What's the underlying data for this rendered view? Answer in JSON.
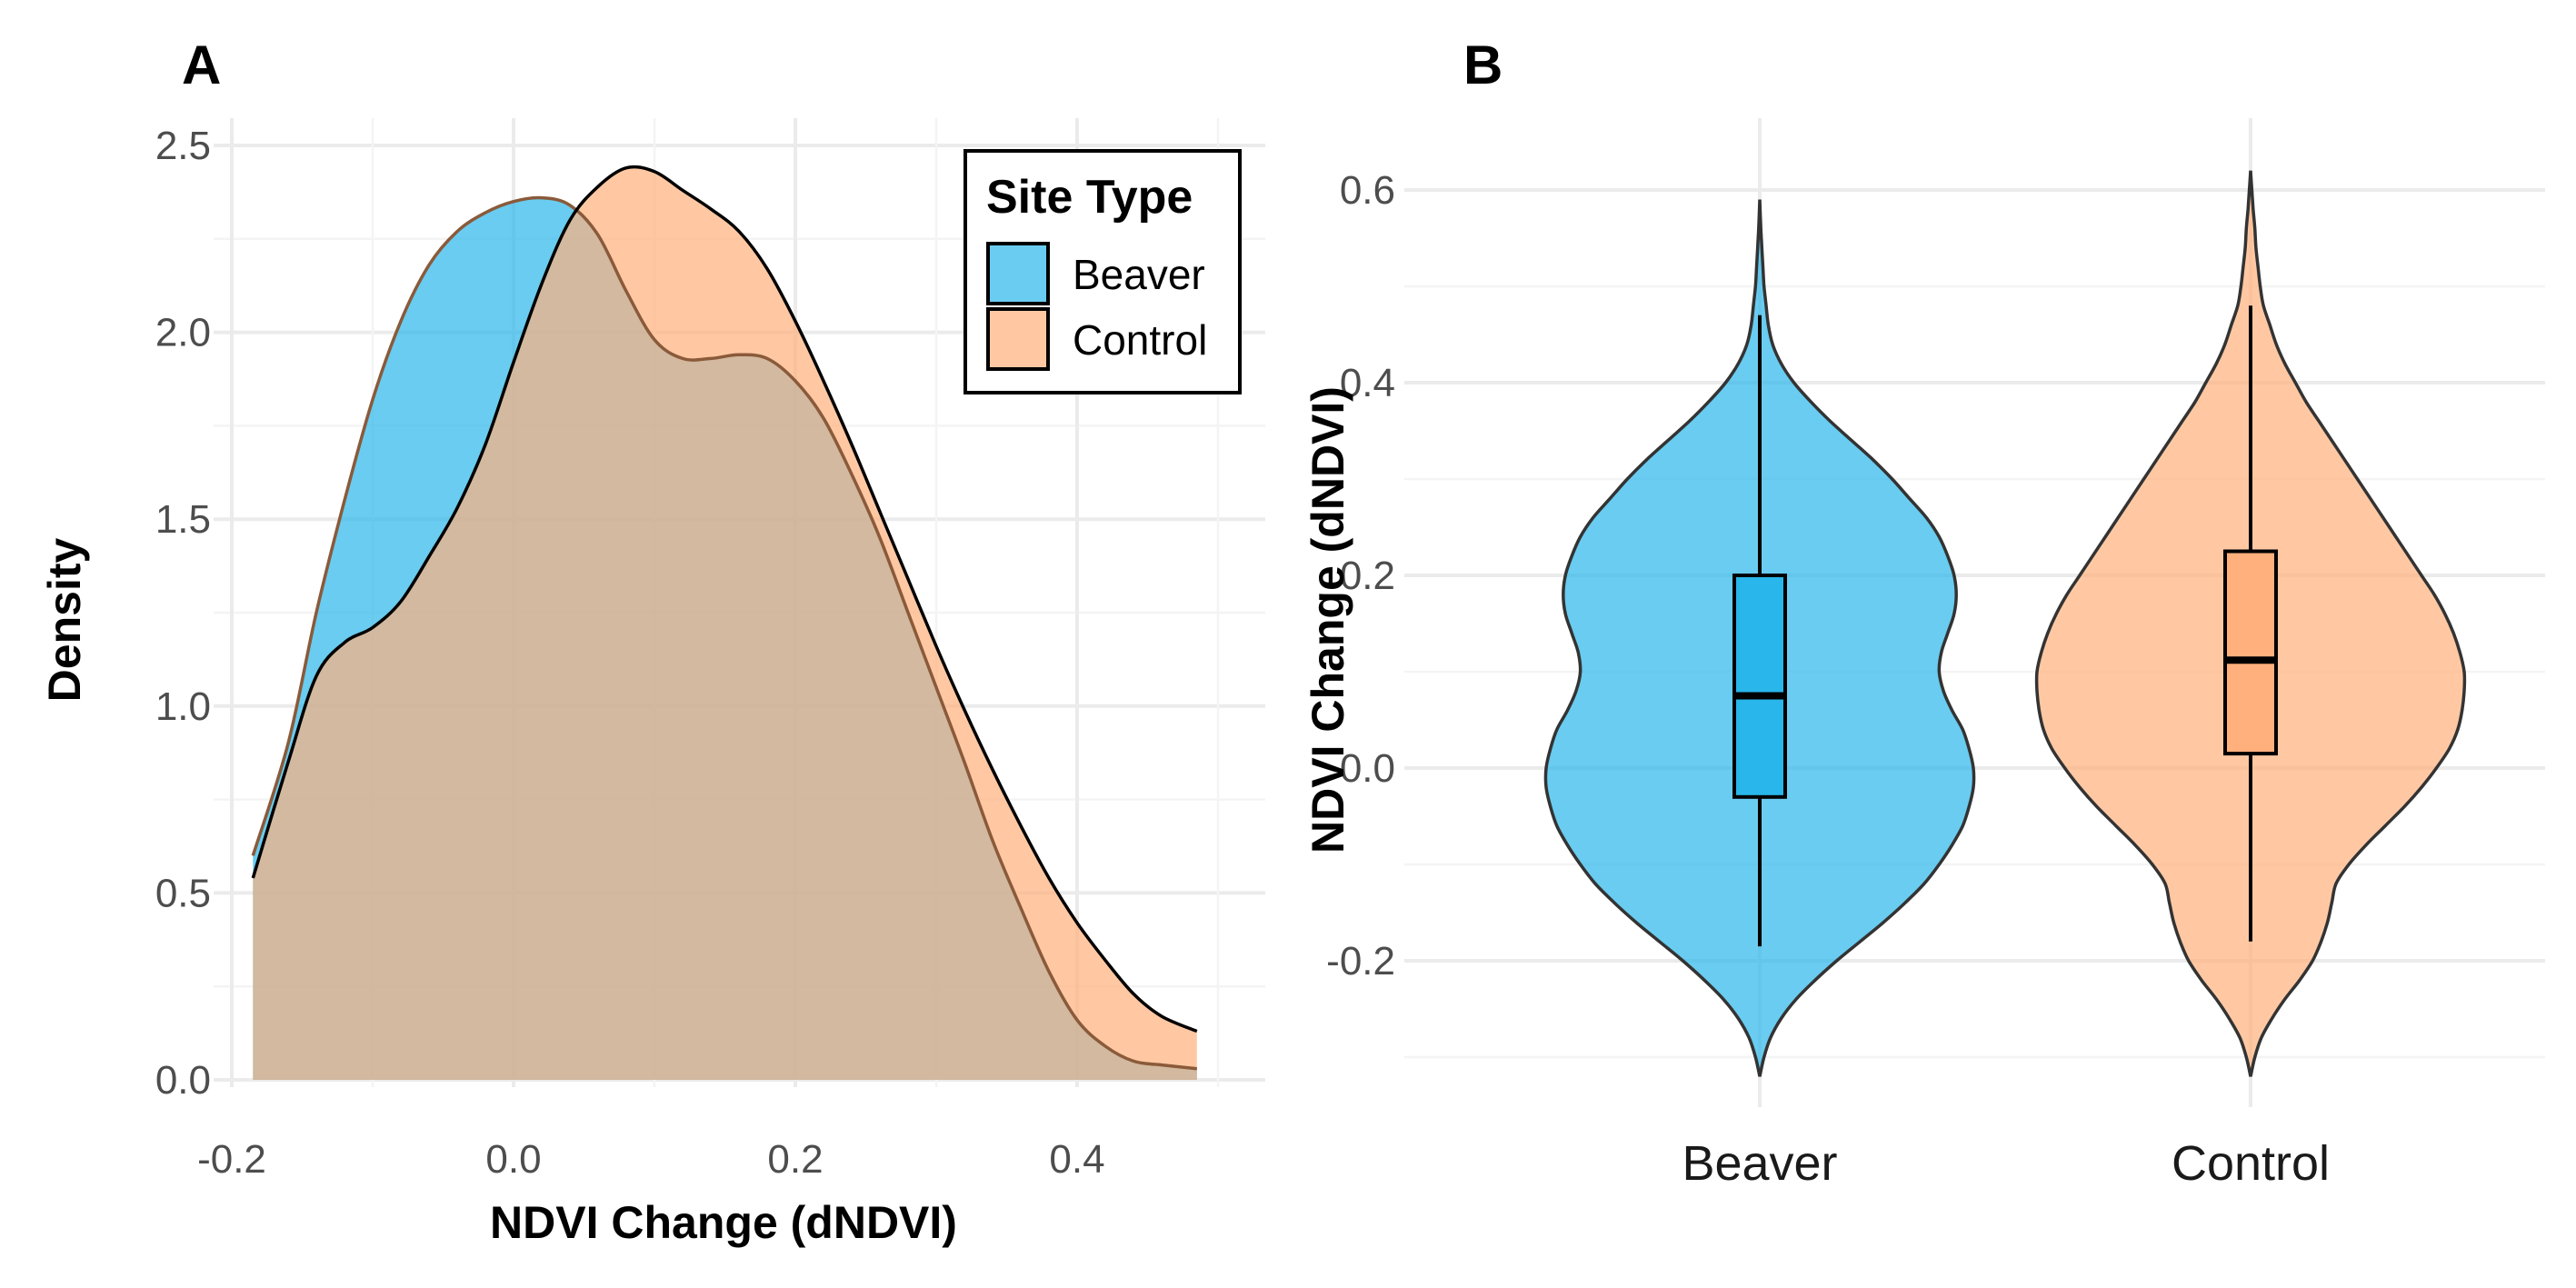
{
  "colors": {
    "beaver": "#29b6ea",
    "control": "#ffb07c",
    "grid_major": "#ebebeb",
    "grid_minor": "#f4f4f4",
    "text": "#000000",
    "tick_text": "#4d4d4d"
  },
  "chart_data": [
    {
      "type": "area",
      "panel_label": "A",
      "xlabel": "NDVI Change (dNDVI)",
      "ylabel": "Density",
      "xlim": [
        -0.2,
        0.5
      ],
      "ylim": [
        0,
        2.5
      ],
      "x_ticks": [
        -0.2,
        0.0,
        0.2,
        0.4
      ],
      "x_tick_labels": [
        "-0.2",
        "0.0",
        "0.2",
        "0.4"
      ],
      "y_ticks": [
        0.0,
        0.5,
        1.0,
        1.5,
        2.0,
        2.5
      ],
      "y_tick_labels": [
        "0.0",
        "0.5",
        "1.0",
        "1.5",
        "2.0",
        "2.5"
      ],
      "grid": true,
      "legend": {
        "title": "Site Type",
        "position": "top-right",
        "entries": [
          "Beaver",
          "Control"
        ]
      },
      "series": [
        {
          "name": "Beaver",
          "x": [
            -0.185,
            -0.16,
            -0.14,
            -0.12,
            -0.1,
            -0.08,
            -0.06,
            -0.04,
            -0.02,
            0.0,
            0.02,
            0.04,
            0.06,
            0.08,
            0.1,
            0.12,
            0.14,
            0.16,
            0.18,
            0.2,
            0.22,
            0.24,
            0.26,
            0.28,
            0.3,
            0.32,
            0.34,
            0.36,
            0.38,
            0.4,
            0.42,
            0.44,
            0.46,
            0.485
          ],
          "y": [
            0.6,
            0.9,
            1.25,
            1.55,
            1.82,
            2.03,
            2.18,
            2.27,
            2.32,
            2.35,
            2.36,
            2.34,
            2.26,
            2.11,
            1.98,
            1.93,
            1.93,
            1.94,
            1.93,
            1.87,
            1.77,
            1.62,
            1.45,
            1.25,
            1.05,
            0.85,
            0.64,
            0.46,
            0.29,
            0.16,
            0.09,
            0.05,
            0.04,
            0.03
          ]
        },
        {
          "name": "Control",
          "x": [
            -0.185,
            -0.16,
            -0.14,
            -0.12,
            -0.1,
            -0.08,
            -0.06,
            -0.04,
            -0.02,
            0.0,
            0.02,
            0.04,
            0.06,
            0.08,
            0.1,
            0.12,
            0.14,
            0.16,
            0.18,
            0.2,
            0.22,
            0.24,
            0.26,
            0.28,
            0.3,
            0.32,
            0.34,
            0.36,
            0.38,
            0.4,
            0.42,
            0.44,
            0.46,
            0.485
          ],
          "y": [
            0.54,
            0.85,
            1.08,
            1.17,
            1.21,
            1.28,
            1.4,
            1.53,
            1.7,
            1.92,
            2.13,
            2.3,
            2.39,
            2.44,
            2.43,
            2.38,
            2.33,
            2.27,
            2.17,
            2.03,
            1.87,
            1.7,
            1.52,
            1.34,
            1.16,
            0.99,
            0.83,
            0.68,
            0.54,
            0.42,
            0.32,
            0.23,
            0.17,
            0.13
          ]
        }
      ]
    },
    {
      "type": "violin",
      "panel_label": "B",
      "xlabel": "",
      "ylabel": "NDVI Change (dNDVI)",
      "categories": [
        "Beaver",
        "Control"
      ],
      "ylim": [
        -0.32,
        0.62
      ],
      "y_ticks": [
        -0.2,
        0.0,
        0.2,
        0.4,
        0.6
      ],
      "y_tick_labels": [
        "-0.2",
        "0.0",
        "0.2",
        "0.4",
        "0.6"
      ],
      "grid": true,
      "series": [
        {
          "name": "Beaver",
          "y_range": [
            -0.32,
            0.59
          ],
          "box": {
            "whisker_low": -0.185,
            "q1": -0.03,
            "median": 0.075,
            "q3": 0.2,
            "whisker_high": 0.47
          },
          "density": {
            "y": [
              -0.32,
              -0.3,
              -0.28,
              -0.26,
              -0.24,
              -0.22,
              -0.2,
              -0.18,
              -0.16,
              -0.14,
              -0.12,
              -0.1,
              -0.08,
              -0.06,
              -0.04,
              -0.02,
              0.0,
              0.02,
              0.04,
              0.06,
              0.08,
              0.1,
              0.12,
              0.14,
              0.16,
              0.18,
              0.2,
              0.22,
              0.24,
              0.26,
              0.28,
              0.3,
              0.32,
              0.34,
              0.36,
              0.38,
              0.4,
              0.42,
              0.44,
              0.46,
              0.48,
              0.5,
              0.52,
              0.54,
              0.56,
              0.59
            ],
            "w": [
              0.0,
              0.02,
              0.05,
              0.1,
              0.17,
              0.26,
              0.36,
              0.47,
              0.58,
              0.68,
              0.77,
              0.84,
              0.9,
              0.95,
              0.98,
              1.0,
              1.0,
              0.98,
              0.95,
              0.9,
              0.86,
              0.84,
              0.85,
              0.88,
              0.91,
              0.92,
              0.91,
              0.88,
              0.84,
              0.78,
              0.7,
              0.62,
              0.53,
              0.43,
              0.33,
              0.24,
              0.16,
              0.1,
              0.06,
              0.04,
              0.03,
              0.02,
              0.015,
              0.01,
              0.005,
              0.0
            ]
          }
        },
        {
          "name": "Control",
          "y_range": [
            -0.32,
            0.62
          ],
          "box": {
            "whisker_low": -0.18,
            "q1": 0.015,
            "median": 0.112,
            "q3": 0.225,
            "whisker_high": 0.48
          },
          "density": {
            "y": [
              -0.32,
              -0.3,
              -0.28,
              -0.26,
              -0.24,
              -0.22,
              -0.2,
              -0.18,
              -0.16,
              -0.14,
              -0.12,
              -0.1,
              -0.08,
              -0.06,
              -0.04,
              -0.02,
              0.0,
              0.02,
              0.04,
              0.06,
              0.08,
              0.1,
              0.12,
              0.14,
              0.16,
              0.18,
              0.2,
              0.22,
              0.24,
              0.26,
              0.28,
              0.3,
              0.32,
              0.34,
              0.36,
              0.38,
              0.4,
              0.42,
              0.44,
              0.46,
              0.48,
              0.5,
              0.52,
              0.54,
              0.56,
              0.58,
              0.6,
              0.62
            ],
            "w": [
              0.0,
              0.02,
              0.05,
              0.1,
              0.16,
              0.23,
              0.29,
              0.33,
              0.36,
              0.38,
              0.4,
              0.46,
              0.54,
              0.63,
              0.72,
              0.8,
              0.87,
              0.93,
              0.97,
              0.99,
              1.0,
              1.0,
              0.98,
              0.95,
              0.91,
              0.86,
              0.8,
              0.74,
              0.68,
              0.62,
              0.56,
              0.5,
              0.44,
              0.38,
              0.32,
              0.26,
              0.21,
              0.16,
              0.12,
              0.09,
              0.06,
              0.045,
              0.035,
              0.025,
              0.02,
              0.012,
              0.006,
              0.0
            ]
          }
        }
      ]
    }
  ]
}
